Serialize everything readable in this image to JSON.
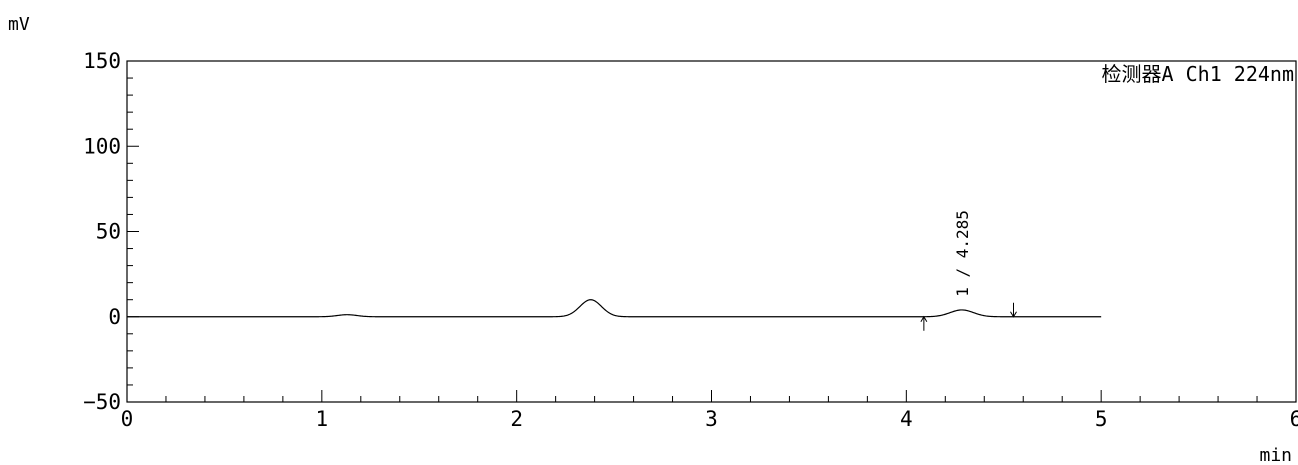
{
  "chart_data": {
    "type": "line",
    "title": "",
    "ylabel": "mV",
    "xlabel": "min",
    "detector_label": "检测器A Ch1 224nm",
    "xlim": [
      0,
      6
    ],
    "ylim": [
      -50,
      150
    ],
    "x_ticks": [
      0,
      1,
      2,
      3,
      4,
      5,
      6
    ],
    "y_ticks": [
      -50,
      0,
      50,
      100,
      150
    ],
    "x_tick_labels": [
      "0",
      "1",
      "2",
      "3",
      "4",
      "5",
      "6"
    ],
    "y_tick_labels": [
      "−50",
      "0",
      "50",
      "100",
      "150"
    ],
    "x_minor_step": 0.2,
    "y_minor_step": 10,
    "grid": false,
    "data_end_x": 5.0,
    "baseline": 0,
    "peaks": [
      {
        "x": 1.13,
        "height": 1.2,
        "width": 0.05
      },
      {
        "x": 2.38,
        "height": 10.0,
        "width": 0.055
      },
      {
        "x": 4.285,
        "height": 4.0,
        "width": 0.06
      }
    ],
    "peak_annotations": [
      {
        "x": 4.285,
        "label": "1 / 4.285"
      }
    ],
    "integration_markers": [
      {
        "x": 4.09,
        "direction": "up"
      },
      {
        "x": 4.55,
        "direction": "down"
      }
    ]
  }
}
